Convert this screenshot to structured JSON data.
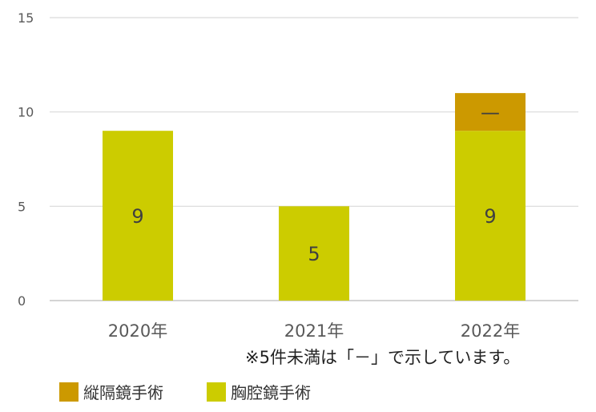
{
  "chart_data": {
    "type": "bar",
    "stacked": true,
    "categories": [
      "2020年",
      "2021年",
      "2022年"
    ],
    "series": [
      {
        "name": "胸腔鏡手術",
        "color": "#cccc00",
        "values": [
          9,
          5,
          9
        ],
        "labels": [
          "9",
          "5",
          "9"
        ]
      },
      {
        "name": "縦隔鏡手術",
        "color": "#cc9900",
        "values": [
          0,
          0,
          2
        ],
        "labels": [
          "",
          "",
          "—"
        ]
      }
    ],
    "ylim": [
      0,
      15
    ],
    "yticks": [
      0,
      5,
      10,
      15
    ],
    "grid": true,
    "legend": "bottom-left"
  },
  "note": "※5件未満は「－」で示しています。",
  "legend_items": [
    {
      "label": "縦隔鏡手術",
      "color": "#cc9900"
    },
    {
      "label": "胸腔鏡手術",
      "color": "#cccc00"
    }
  ]
}
